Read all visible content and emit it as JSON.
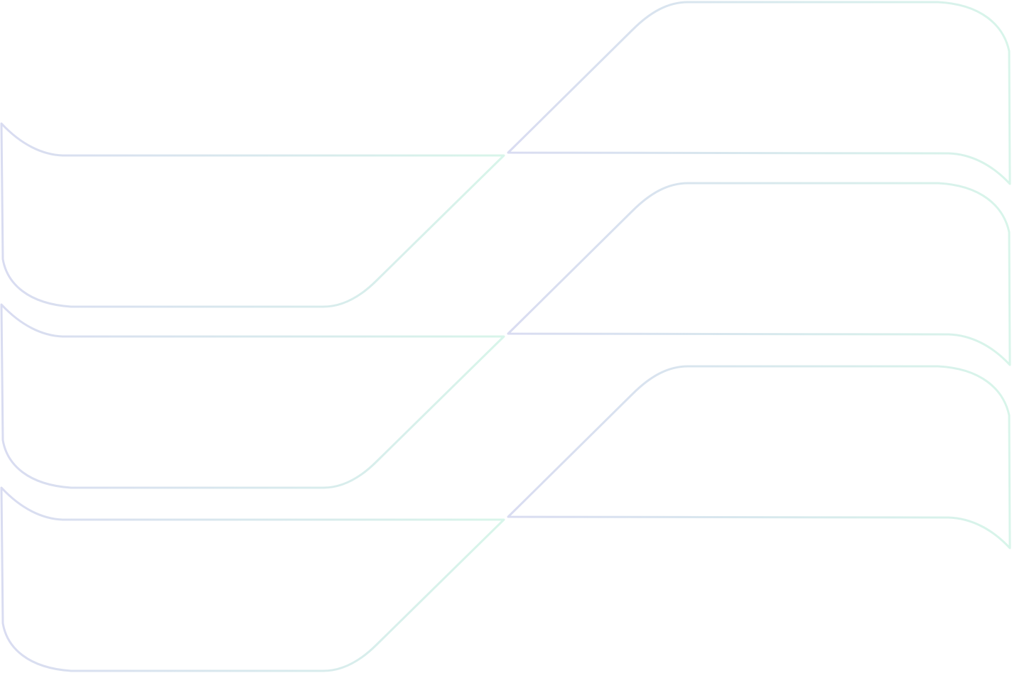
{
  "graphic": {
    "shape": "stacked-ribbon-outlines",
    "rows": 3,
    "colors": {
      "lavender": "#d9dcf1",
      "mint": "#d8f5ea",
      "background": "#ffffff"
    }
  }
}
